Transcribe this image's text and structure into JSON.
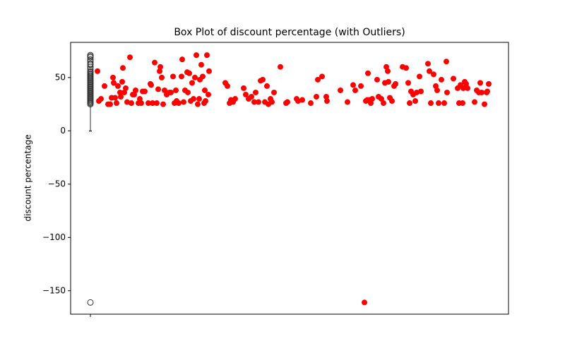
{
  "chart_data": {
    "type": "box",
    "title": "Box Plot of discount percentage (with Outliers)",
    "ylabel": "discount percentage",
    "ylim": [
      -172,
      83
    ],
    "xlim": [
      -28,
      592
    ],
    "yticks": [
      {
        "value": -150,
        "label": "−150"
      },
      {
        "value": -100,
        "label": "−100"
      },
      {
        "value": -50,
        "label": "−50"
      },
      0,
      50
    ],
    "xticks": [
      {
        "value": 0,
        "label": null
      }
    ],
    "box": {
      "x": 0,
      "whislo": 0,
      "q1": 0,
      "median": 0,
      "q3": 0,
      "whishi": 24,
      "color": "#333333",
      "fliers": [
        -161,
        25,
        26,
        27,
        28,
        29,
        30,
        31,
        32,
        33,
        34,
        35,
        36,
        37,
        38,
        39,
        40,
        41,
        42,
        43,
        44,
        45,
        46,
        47,
        48,
        49,
        50,
        51,
        52,
        53,
        54,
        55,
        56,
        58,
        60,
        62,
        63,
        65,
        67,
        69,
        70,
        71
      ]
    },
    "scatter": {
      "type": "scatter",
      "color": "#ff0000",
      "x": [
        10,
        12,
        15,
        20,
        25,
        28,
        30,
        32,
        33,
        35,
        37,
        39,
        42,
        43,
        45,
        46,
        48,
        50,
        52,
        56,
        58,
        60,
        62,
        64,
        68,
        70,
        72,
        74,
        77,
        82,
        85,
        86,
        88,
        91,
        94,
        96,
        98,
        99,
        101,
        103,
        105,
        108,
        112,
        114,
        117,
        119,
        121,
        122,
        125,
        129,
        130,
        132,
        134,
        137,
        138,
        140,
        142,
        144,
        146,
        148,
        150,
        152,
        154,
        155,
        157,
        159,
        161,
        162,
        163,
        165,
        167,
        168,
        191,
        194,
        197,
        199,
        202,
        205,
        217,
        220,
        224,
        228,
        232,
        234,
        238,
        241,
        244,
        247,
        250,
        252,
        255,
        257,
        260,
        269,
        277,
        279,
        292,
        294,
        300,
        312,
        320,
        322,
        328,
        334,
        335,
        354,
        364,
        372,
        375,
        383,
        388,
        390,
        392,
        393,
        395,
        397,
        399,
        406,
        408,
        412,
        415,
        417,
        419,
        421,
        422,
        424,
        427,
        430,
        432,
        442,
        447,
        450,
        452,
        454,
        457,
        460,
        462,
        466,
        468,
        478,
        480,
        482,
        486,
        489,
        491,
        493,
        497,
        501,
        504,
        505,
        514,
        520,
        522,
        524,
        527,
        528,
        530,
        532,
        534,
        544,
        547,
        550,
        552,
        554,
        558,
        561,
        562,
        564
      ],
      "values": [
        56,
        28,
        30,
        42,
        25,
        25,
        31,
        50,
        45,
        31,
        26,
        42,
        36,
        32,
        46,
        59,
        36,
        40,
        27,
        69,
        26,
        34,
        34,
        38,
        26,
        30,
        26,
        37,
        37,
        26,
        44,
        43,
        26,
        64,
        26,
        39,
        56,
        60,
        50,
        25,
        38,
        34,
        36,
        36,
        51,
        26,
        38,
        28,
        26,
        51,
        67,
        27,
        38,
        55,
        36,
        54,
        28,
        45,
        30,
        50,
        71,
        25,
        30,
        48,
        62,
        51,
        26,
        38,
        28,
        71,
        34,
        56,
        45,
        42,
        26,
        29,
        27,
        30,
        40,
        34,
        30,
        32,
        27,
        36,
        27,
        47,
        48,
        27,
        42,
        25,
        30,
        27,
        36,
        60,
        26,
        27,
        30,
        28,
        29,
        26,
        32,
        48,
        51,
        32,
        28,
        38,
        27,
        43,
        38,
        42,
        -161,
        28,
        29,
        54,
        29,
        26,
        30,
        48,
        32,
        30,
        26,
        45,
        60,
        56,
        46,
        31,
        28,
        42,
        44,
        60,
        59,
        45,
        26,
        37,
        34,
        28,
        36,
        51,
        37,
        63,
        56,
        26,
        53,
        42,
        38,
        26,
        48,
        26,
        65,
        36,
        49,
        40,
        26,
        43,
        26,
        40,
        46,
        44,
        40,
        27,
        38,
        36,
        45,
        36,
        25,
        36,
        37,
        44
      ]
    }
  }
}
